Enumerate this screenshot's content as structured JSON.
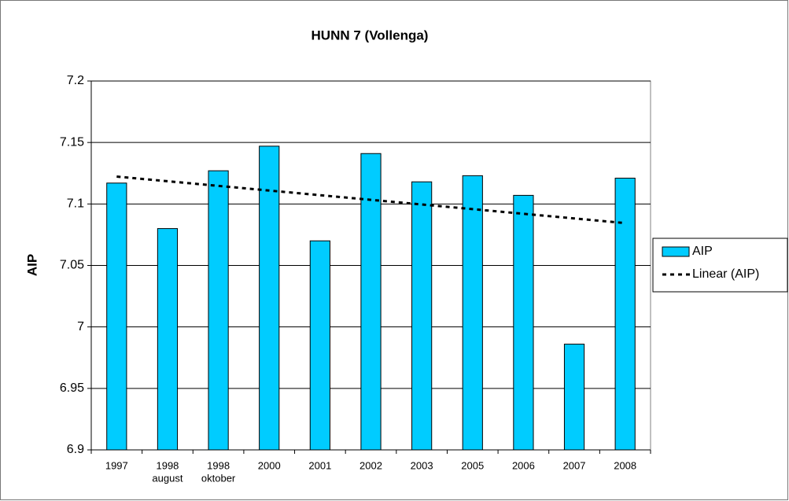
{
  "chart_data": {
    "type": "bar",
    "title": "HUNN 7 (Vollenga)",
    "y_label": "AIP",
    "categories": [
      [
        "1997"
      ],
      [
        "1998",
        "august"
      ],
      [
        "1998",
        "oktober"
      ],
      [
        "2000"
      ],
      [
        "2001"
      ],
      [
        "2002"
      ],
      [
        "2003"
      ],
      [
        "2005"
      ],
      [
        "2006"
      ],
      [
        "2007"
      ],
      [
        "2008"
      ]
    ],
    "series": [
      {
        "name": "AIP",
        "color": "#00ccff",
        "values": [
          7.117,
          7.08,
          7.127,
          7.147,
          7.07,
          7.141,
          7.118,
          7.123,
          7.107,
          6.986,
          7.121
        ]
      }
    ],
    "trendline": {
      "name": "Linear (AIP)",
      "kind": "linear",
      "color": "#000000"
    },
    "ylim": [
      6.9,
      7.2
    ],
    "yticks": [
      6.9,
      6.95,
      7,
      7.05,
      7.1,
      7.15,
      7.2
    ],
    "grid": true,
    "legend": "right"
  }
}
